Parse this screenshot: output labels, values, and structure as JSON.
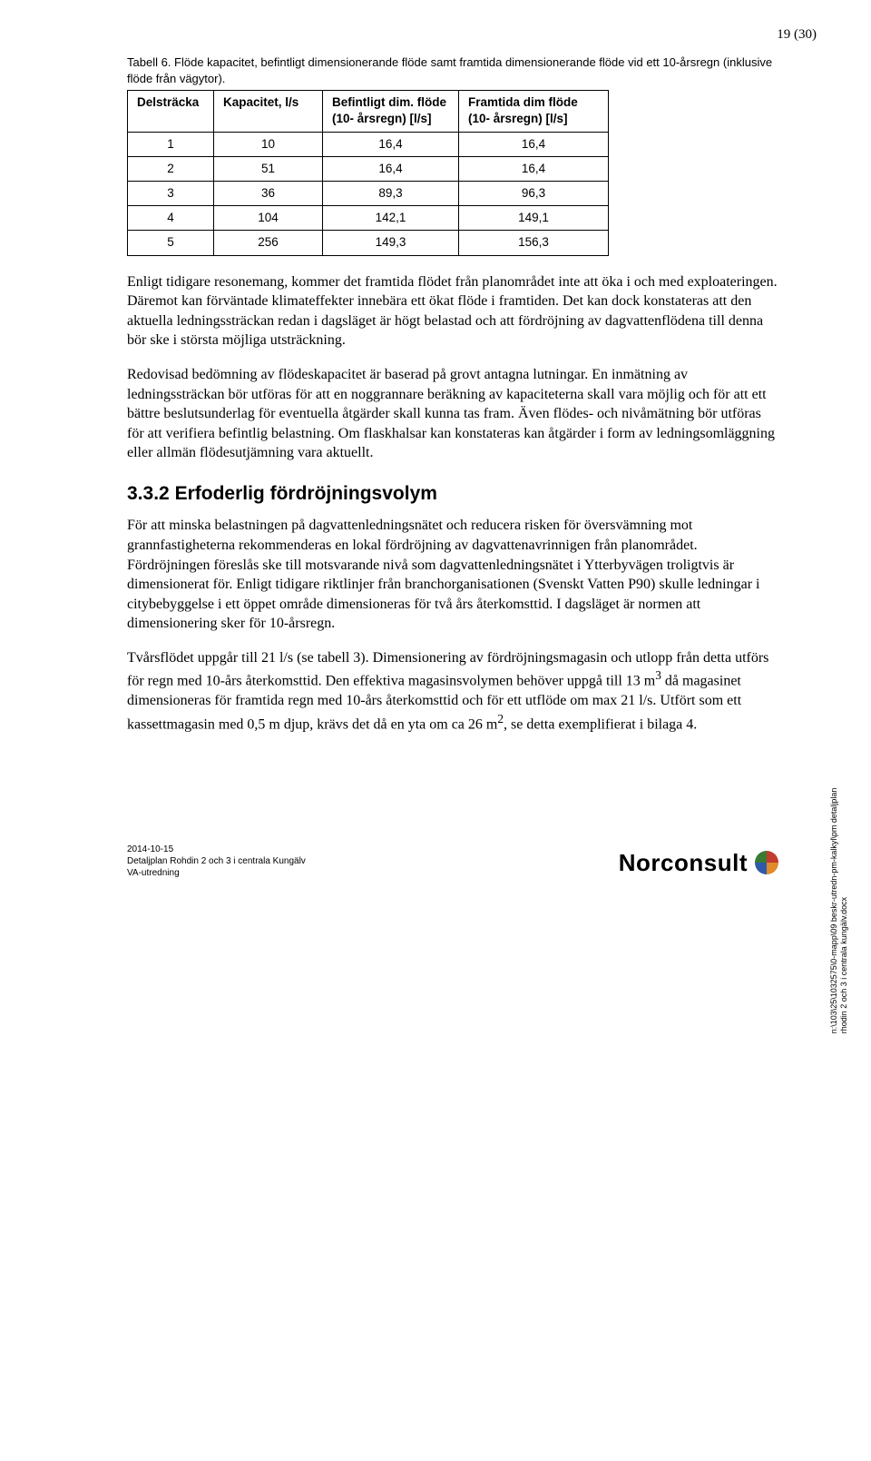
{
  "page_number": "19 (30)",
  "table": {
    "caption": "Tabell 6. Flöde kapacitet, befintligt dimensionerande flöde samt framtida dimensionerande flöde vid ett 10-årsregn (inklusive flöde från vägytor).",
    "columns": [
      "Delsträcka",
      "Kapacitet, l/s",
      "Befintligt dim. flöde (10- årsregn) [l/s]",
      "Framtida dim flöde (10- årsregn) [l/s]"
    ],
    "col_widths": [
      "95px",
      "120px",
      "150px",
      "165px"
    ],
    "rows": [
      [
        "1",
        "10",
        "16,4",
        "16,4"
      ],
      [
        "2",
        "51",
        "16,4",
        "16,4"
      ],
      [
        "3",
        "36",
        "89,3",
        "96,3"
      ],
      [
        "4",
        "104",
        "142,1",
        "149,1"
      ],
      [
        "5",
        "256",
        "149,3",
        "156,3"
      ]
    ]
  },
  "paragraphs": {
    "p1": "Enligt tidigare resonemang, kommer det framtida flödet från planområdet inte att öka i och med exploateringen. Däremot kan förväntade klimateffekter innebära ett ökat flöde i framtiden. Det kan dock konstateras att den aktuella ledningssträckan redan i dagsläget är högt belastad och att fördröjning av dagvattenflödena till denna bör ske i största möjliga utsträckning.",
    "p2": "Redovisad bedömning av flödeskapacitet är baserad på grovt antagna lutningar. En inmätning av ledningssträckan bör utföras för att en noggrannare beräkning av kapaciteterna skall vara möjlig och för att ett bättre beslutsunderlag för eventuella åtgärder skall kunna tas fram. Även flödes- och nivåmätning bör utföras för att verifiera befintlig belastning. Om flaskhalsar kan konstateras kan åtgärder i form av ledningsomläggning eller allmän flödesutjämning vara aktuellt."
  },
  "section": {
    "number": "3.3.2",
    "title": "Erfoderlig fördröjningsvolym",
    "p1": "För att minska belastningen på dagvattenledningsnätet och reducera risken för översvämning mot grannfastigheterna rekommenderas en lokal fördröjning av dagvattenavrinnigen från planområdet. Fördröjningen föreslås ske till motsvarande nivå som dagvattenledningsnätet i Ytterbyvägen troligtvis är dimensionerat för. Enligt tidigare riktlinjer från branchorganisationen (Svenskt Vatten P90) skulle ledningar i citybebyggelse i ett öppet område dimensioneras för två års återkomsttid. I dagsläget är normen att dimensionering sker för 10-årsregn.",
    "p2_a": "Tvårsflödet uppgår till 21 l/s (se tabell 3). Dimensionering av fördröjningsmagasin och utlopp från detta utförs för regn med 10-års återkomsttid. Den effektiva magasinsvolymen behöver uppgå till 13 m",
    "p2_sup1": "3",
    "p2_b": " då magasinet dimensioneras för framtida regn med 10-års återkomsttid och för ett utflöde om max 21 l/s. Utfört som ett kassettmagasin med 0,5 m djup, krävs det då en yta om ca 26 m",
    "p2_sup2": "2",
    "p2_c": ", se detta exemplifierat i bilaga 4."
  },
  "footer": {
    "date": "2014-10-15",
    "line2": "Detaljplan Rohdin 2 och 3 i centrala Kungälv",
    "line3": "VA-utredning",
    "logo_text": "Norconsult"
  },
  "side_path": {
    "line1": "n:\\103\\25\\1032575\\0-mapp\\09 beskr-utredn-pm-kalkyl\\pm detaljplan",
    "line2": "rhodin 2 och 3 i centrala kungälv.docx"
  },
  "colors": {
    "text": "#000000",
    "bg": "#ffffff",
    "logo_green": "#3a7a33",
    "logo_red": "#c33b2f",
    "logo_blue": "#2f5aa8",
    "logo_orange": "#e08b2c"
  }
}
